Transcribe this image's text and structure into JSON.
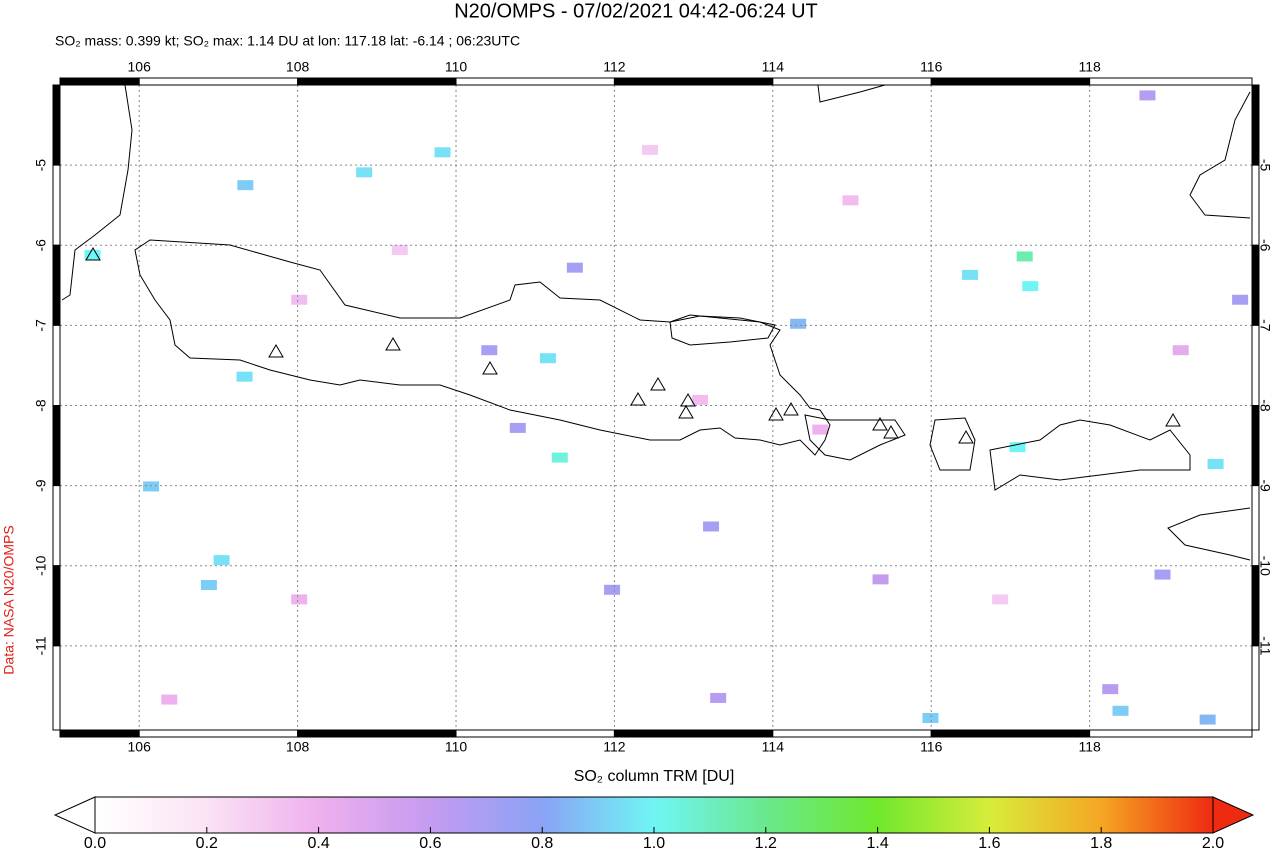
{
  "chart_data": {
    "type": "map",
    "title": "N20/OMPS - 07/02/2021 04:42-06:24 UT",
    "subtitle": "SO₂ mass: 0.399 kt; SO₂ max: 1.14 DU at lon: 117.18 lat: -6.14 ; 06:23UTC",
    "side_label": "Data: NASA N20/OMPS",
    "colorbar_label": "SO₂ column TRM [DU]",
    "xlim": [
      105,
      120.05
    ],
    "ylim": [
      -12.05,
      -4
    ],
    "xticks": [
      106,
      108,
      110,
      112,
      114,
      116,
      118
    ],
    "yticks": [
      -5,
      -6,
      -7,
      -8,
      -9,
      -10,
      -11
    ],
    "grid": true,
    "clim": [
      0,
      2
    ],
    "cticks": [
      {
        "value": 0,
        "label": "0.0"
      },
      {
        "value": 0.2,
        "label": "0.2"
      },
      {
        "value": 0.4,
        "label": "0.4"
      },
      {
        "value": 0.6,
        "label": "0.6"
      },
      {
        "value": 0.8,
        "label": "0.8"
      },
      {
        "value": 1,
        "label": "1.0"
      },
      {
        "value": 1.2,
        "label": "1.2"
      },
      {
        "value": 1.4,
        "label": "1.4"
      },
      {
        "value": 1.6,
        "label": "1.6"
      },
      {
        "value": 1.8,
        "label": "1.8"
      },
      {
        "value": 2,
        "label": "2.0"
      }
    ],
    "colormap": [
      "#ffffff",
      "#fbe3f5",
      "#eeb0ee",
      "#c49bf0",
      "#8aa3f5",
      "#70f5f5",
      "#6ae88e",
      "#6fe82c",
      "#d8ec3a",
      "#f5a623",
      "#ee2a10"
    ],
    "x": [
      117.18,
      117.25,
      116.49,
      119.59,
      117.09,
      111.31,
      111.16,
      109.83,
      105.41,
      107.33,
      107.04,
      106.88,
      106.15,
      108.84,
      107.34,
      115.99,
      118.39,
      119.49,
      118.73,
      114.32,
      111.5,
      110.42,
      110.78,
      113.22,
      111.97,
      113.31,
      119.9,
      118.92,
      118.26,
      115.36,
      108.02,
      109.29,
      112.45,
      114.98,
      116.87,
      108.02,
      113.08,
      106.38,
      119.15,
      114.6
    ],
    "y": [
      -6.14,
      -6.51,
      -6.37,
      -8.73,
      -8.52,
      -8.65,
      -7.41,
      -4.84,
      -6.12,
      -7.64,
      -9.93,
      -10.24,
      -9.01,
      -5.09,
      -5.25,
      -11.9,
      -11.81,
      -11.92,
      -4.13,
      -6.98,
      -6.28,
      -7.31,
      -8.28,
      -9.51,
      -10.3,
      -11.65,
      -6.68,
      -10.11,
      -11.54,
      -10.17,
      -6.68,
      -6.06,
      -4.81,
      -5.44,
      -10.42,
      -10.42,
      -7.93,
      -11.67,
      -7.31,
      -8.3
    ],
    "values": [
      1.14,
      1.0,
      0.95,
      0.95,
      1.0,
      1.05,
      0.95,
      0.95,
      1.0,
      0.95,
      0.95,
      0.9,
      0.9,
      0.95,
      0.9,
      0.9,
      0.9,
      0.85,
      0.65,
      0.85,
      0.7,
      0.7,
      0.7,
      0.7,
      0.7,
      0.65,
      0.7,
      0.7,
      0.65,
      0.6,
      0.35,
      0.3,
      0.3,
      0.35,
      0.3,
      0.4,
      0.35,
      0.4,
      0.45,
      0.4
    ]
  }
}
